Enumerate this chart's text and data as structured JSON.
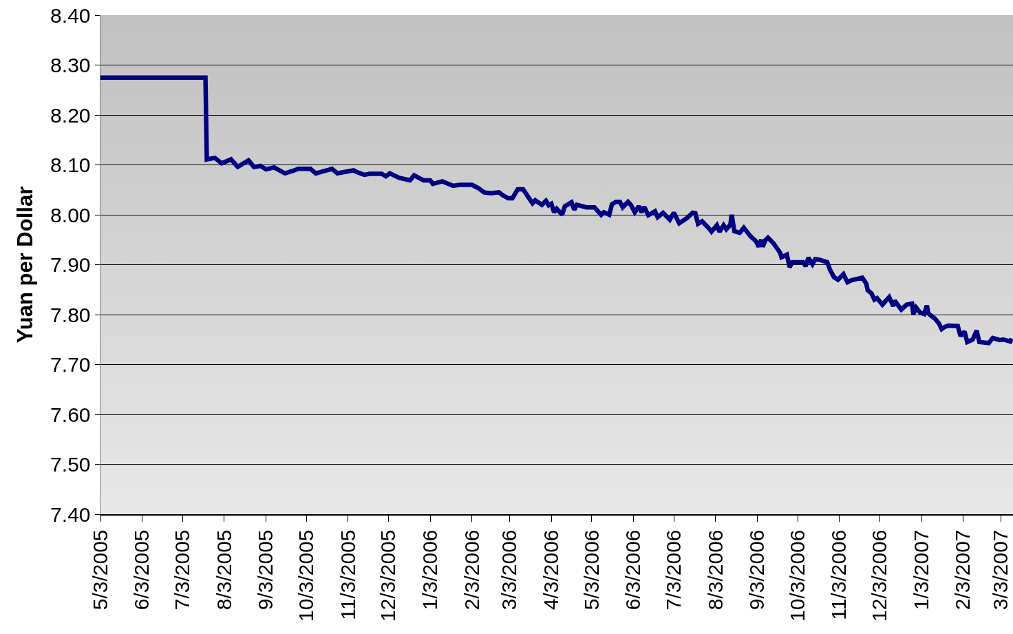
{
  "chart_data": {
    "type": "line",
    "ylabel": "Yuan per Dollar",
    "x": [
      "2005-05-03",
      "2005-07-20",
      "2005-07-21",
      "2005-07-27",
      "2005-08-01",
      "2005-08-08",
      "2005-08-13",
      "2005-08-21",
      "2005-08-25",
      "2005-08-30",
      "2005-09-03",
      "2005-09-09",
      "2005-09-17",
      "2005-09-23",
      "2005-09-27",
      "2005-10-06",
      "2005-10-10",
      "2005-10-22",
      "2005-10-26",
      "2005-11-07",
      "2005-11-10",
      "2005-11-15",
      "2005-11-19",
      "2005-11-28",
      "2005-12-01",
      "2005-12-04",
      "2005-12-11",
      "2005-12-19",
      "2005-12-22",
      "2005-12-29",
      "2006-01-03",
      "2006-01-05",
      "2006-01-12",
      "2006-01-20",
      "2006-01-25",
      "2006-02-03",
      "2006-02-08",
      "2006-02-12",
      "2006-02-17",
      "2006-02-23",
      "2006-02-26",
      "2006-03-02",
      "2006-03-05",
      "2006-03-09",
      "2006-03-13",
      "2006-03-17",
      "2006-03-20",
      "2006-03-22",
      "2006-03-27",
      "2006-03-30",
      "2006-04-01",
      "2006-04-03",
      "2006-04-05",
      "2006-04-07",
      "2006-04-11",
      "2006-04-13",
      "2006-04-18",
      "2006-04-20",
      "2006-04-22",
      "2006-04-29",
      "2006-05-05",
      "2006-05-10",
      "2006-05-12",
      "2006-05-16",
      "2006-05-18",
      "2006-05-21",
      "2006-05-24",
      "2006-05-26",
      "2006-05-30",
      "2006-06-01",
      "2006-06-04",
      "2006-06-07",
      "2006-06-09",
      "2006-06-11",
      "2006-06-14",
      "2006-06-19",
      "2006-06-21",
      "2006-06-25",
      "2006-06-30",
      "2006-07-03",
      "2006-07-07",
      "2006-07-13",
      "2006-07-17",
      "2006-07-19",
      "2006-07-21",
      "2006-07-24",
      "2006-07-29",
      "2006-07-31",
      "2006-08-04",
      "2006-08-06",
      "2006-08-09",
      "2006-08-11",
      "2006-08-14",
      "2006-08-15",
      "2006-08-17",
      "2006-08-21",
      "2006-08-24",
      "2006-08-29",
      "2006-09-02",
      "2006-09-04",
      "2006-09-06",
      "2006-09-07",
      "2006-09-09",
      "2006-09-11",
      "2006-09-15",
      "2006-09-20",
      "2006-09-21",
      "2006-09-25",
      "2006-09-27",
      "2006-09-29",
      "2006-10-07",
      "2006-10-09",
      "2006-10-11",
      "2006-10-14",
      "2006-10-16",
      "2006-10-19",
      "2006-10-25",
      "2006-10-27",
      "2006-10-30",
      "2006-11-02",
      "2006-11-06",
      "2006-11-09",
      "2006-11-12",
      "2006-11-20",
      "2006-11-23",
      "2006-11-24",
      "2006-11-27",
      "2006-11-29",
      "2006-12-01",
      "2006-12-05",
      "2006-12-10",
      "2006-12-13",
      "2006-12-14",
      "2006-12-19",
      "2006-12-23",
      "2006-12-27",
      "2006-12-28",
      "2006-12-30",
      "2007-01-02",
      "2007-01-05",
      "2007-01-07",
      "2007-01-08",
      "2007-01-10",
      "2007-01-13",
      "2007-01-16",
      "2007-01-18",
      "2007-01-20",
      "2007-01-23",
      "2007-01-30",
      "2007-02-01",
      "2007-02-04",
      "2007-02-06",
      "2007-02-10",
      "2007-02-13",
      "2007-02-15",
      "2007-02-22",
      "2007-02-25",
      "2007-03-02",
      "2007-03-05",
      "2007-03-10",
      "2007-03-11"
    ],
    "series": [
      {
        "color": "#000080",
        "values": [
          8.275,
          8.275,
          8.111,
          8.114,
          8.103,
          8.111,
          8.096,
          8.109,
          8.096,
          8.098,
          8.091,
          8.095,
          8.083,
          8.088,
          8.092,
          8.092,
          8.083,
          8.092,
          8.083,
          8.089,
          8.085,
          8.08,
          8.082,
          8.082,
          8.077,
          8.083,
          8.074,
          8.069,
          8.079,
          8.069,
          8.069,
          8.062,
          8.067,
          8.058,
          8.06,
          8.06,
          8.053,
          8.045,
          8.043,
          8.045,
          8.039,
          8.033,
          8.033,
          8.051,
          8.051,
          8.035,
          8.023,
          8.029,
          8.02,
          8.028,
          8.019,
          8.022,
          8.005,
          8.012,
          8.0,
          8.017,
          8.025,
          8.01,
          8.02,
          8.015,
          8.015,
          8.0,
          8.005,
          8.0,
          8.021,
          8.026,
          8.026,
          8.015,
          8.026,
          8.02,
          8.005,
          8.017,
          8.005,
          8.016,
          7.999,
          8.007,
          7.995,
          8.004,
          7.99,
          8.004,
          7.983,
          7.994,
          8.004,
          8.003,
          7.982,
          7.987,
          7.973,
          7.966,
          7.979,
          7.966,
          7.979,
          7.971,
          7.98,
          8.0,
          7.967,
          7.964,
          7.974,
          7.957,
          7.947,
          7.936,
          7.95,
          7.936,
          7.949,
          7.954,
          7.943,
          7.924,
          7.915,
          7.92,
          7.895,
          7.905,
          7.905,
          7.897,
          7.914,
          7.901,
          7.911,
          7.91,
          7.905,
          7.89,
          7.875,
          7.87,
          7.881,
          7.865,
          7.869,
          7.874,
          7.862,
          7.849,
          7.842,
          7.83,
          7.833,
          7.82,
          7.835,
          7.817,
          7.828,
          7.81,
          7.82,
          7.822,
          7.801,
          7.814,
          7.804,
          7.801,
          7.818,
          7.803,
          7.798,
          7.792,
          7.782,
          7.771,
          7.775,
          7.778,
          7.777,
          7.757,
          7.766,
          7.745,
          7.75,
          7.768,
          7.745,
          7.743,
          7.753,
          7.749,
          7.75,
          7.746,
          7.752
        ]
      }
    ],
    "xlim": [
      "2005-05-03",
      "2007-03-12"
    ],
    "xticks": [
      {
        "value": "2005-05-03",
        "label": "5/3/2005"
      },
      {
        "value": "2005-06-03",
        "label": "6/3/2005"
      },
      {
        "value": "2005-07-03",
        "label": "7/3/2005"
      },
      {
        "value": "2005-08-03",
        "label": "8/3/2005"
      },
      {
        "value": "2005-09-03",
        "label": "9/3/2005"
      },
      {
        "value": "2005-10-03",
        "label": "10/3/2005"
      },
      {
        "value": "2005-11-03",
        "label": "11/3/2005"
      },
      {
        "value": "2005-12-03",
        "label": "12/3/2005"
      },
      {
        "value": "2006-01-03",
        "label": "1/3/2006"
      },
      {
        "value": "2006-02-03",
        "label": "2/3/2006"
      },
      {
        "value": "2006-03-03",
        "label": "3/3/2006"
      },
      {
        "value": "2006-04-03",
        "label": "4/3/2006"
      },
      {
        "value": "2006-05-03",
        "label": "5/3/2006"
      },
      {
        "value": "2006-06-03",
        "label": "6/3/2006"
      },
      {
        "value": "2006-07-03",
        "label": "7/3/2006"
      },
      {
        "value": "2006-08-03",
        "label": "8/3/2006"
      },
      {
        "value": "2006-09-03",
        "label": "9/3/2006"
      },
      {
        "value": "2006-10-03",
        "label": "10/3/2006"
      },
      {
        "value": "2006-11-03",
        "label": "11/3/2006"
      },
      {
        "value": "2006-12-03",
        "label": "12/3/2006"
      },
      {
        "value": "2007-01-03",
        "label": "1/3/2007"
      },
      {
        "value": "2007-02-03",
        "label": "2/3/2007"
      },
      {
        "value": "2007-03-03",
        "label": "3/3/2007"
      }
    ],
    "ylim": [
      7.4,
      8.4
    ],
    "yticks": [
      {
        "value": 7.4,
        "label": "7.40"
      },
      {
        "value": 7.5,
        "label": "7.50"
      },
      {
        "value": 7.6,
        "label": "7.60"
      },
      {
        "value": 7.7,
        "label": "7.70"
      },
      {
        "value": 7.8,
        "label": "7.80"
      },
      {
        "value": 7.9,
        "label": "7.90"
      },
      {
        "value": 8.0,
        "label": "8.00"
      },
      {
        "value": 8.1,
        "label": "8.10"
      },
      {
        "value": 8.2,
        "label": "8.20"
      },
      {
        "value": 8.3,
        "label": "8.30"
      },
      {
        "value": 8.4,
        "label": "8.40"
      }
    ],
    "grid": "y",
    "line_style": "solid"
  }
}
